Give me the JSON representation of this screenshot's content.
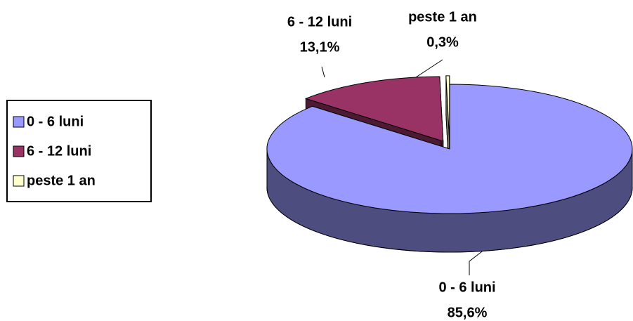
{
  "chart_data": {
    "type": "pie3d",
    "categories": [
      "0 - 6 luni",
      "6 - 12 luni",
      "peste 1 an"
    ],
    "values": [
      85.6,
      13.1,
      0.3
    ],
    "value_labels": [
      "85,6%",
      "13,1%",
      "0,3%"
    ],
    "colors": [
      "#9999ff",
      "#993366",
      "#ffffcc"
    ],
    "legend": "left"
  }
}
